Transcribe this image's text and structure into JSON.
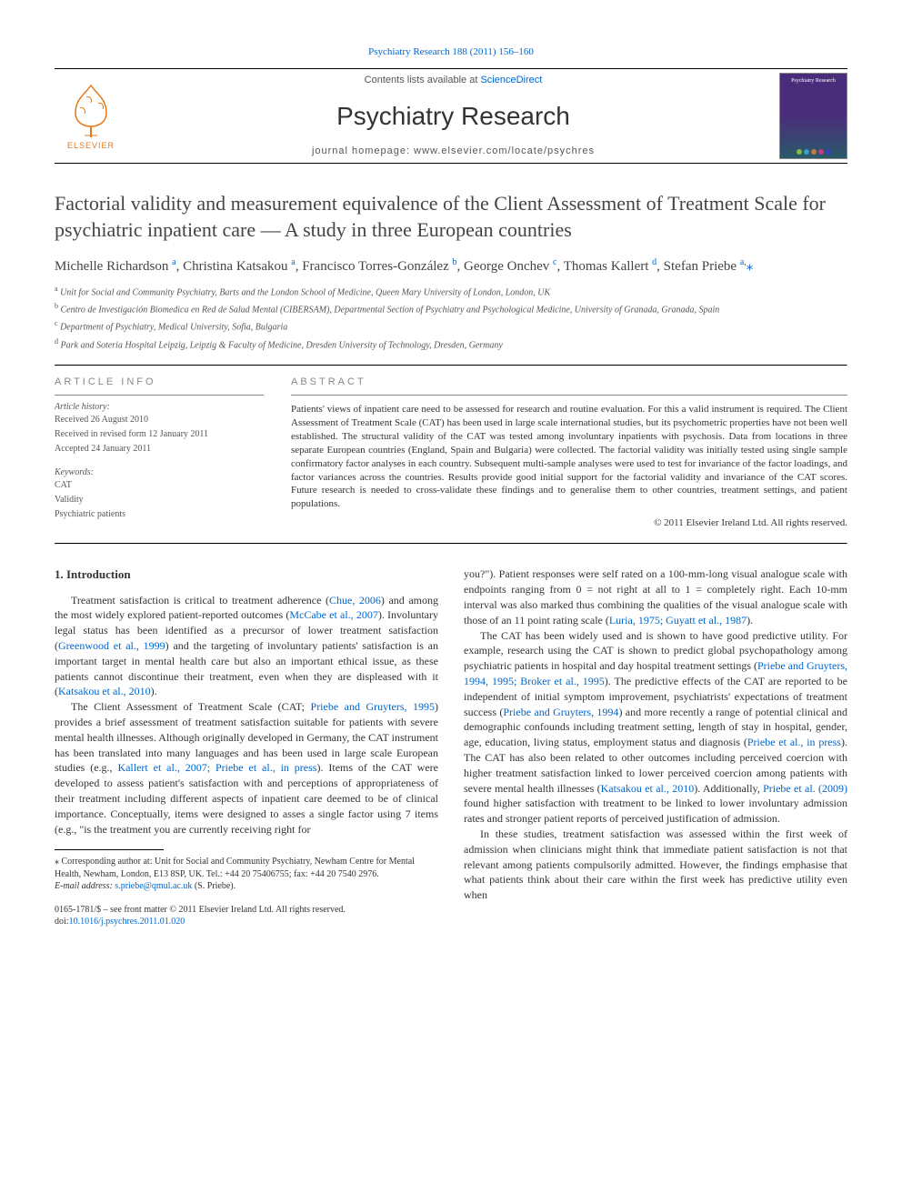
{
  "top_link": {
    "prefix": "",
    "journal_ref": "Psychiatry Research 188 (2011) 156–160",
    "url_text": ""
  },
  "header": {
    "contents_prefix": "Contents lists available at ",
    "contents_link": "ScienceDirect",
    "journal_title": "Psychiatry Research",
    "homepage_prefix": "journal homepage: ",
    "homepage_url": "www.elsevier.com/locate/psychres",
    "publisher_name": "ELSEVIER"
  },
  "cover": {
    "title_text": "Psychiatry Research",
    "dot_colors": [
      "#7fbf3f",
      "#3f9fbf",
      "#bf7f3f",
      "#bf3f7f",
      "#3f3fbf"
    ]
  },
  "article": {
    "title": "Factorial validity and measurement equivalence of the Client Assessment of Treatment Scale for psychiatric inpatient care — A study in three European countries",
    "authors_html": "Michelle Richardson <sup>a</sup>, Christina Katsakou <sup>a</sup>, Francisco Torres-González <sup>b</sup>, George Onchev <sup>c</sup>, Thomas Kallert <sup>d</sup>, Stefan Priebe <sup>a,</sup><span class='star'>⁎</span>",
    "affiliations": [
      "a Unit for Social and Community Psychiatry, Barts and the London School of Medicine, Queen Mary University of London, London, UK",
      "b Centro de Investigación Biomedica en Red de Salud Mental (CIBERSAM), Departmental Section of Psychiatry and Psychological Medicine, University of Granada, Granada, Spain",
      "c Department of Psychiatry, Medical University, Sofia, Bulgaria",
      "d Park and Soteria Hospital Leipzig, Leipzig & Faculty of Medicine, Dresden University of Technology, Dresden, Germany"
    ]
  },
  "article_info": {
    "heading": "article info",
    "history_label": "Article history:",
    "history": [
      "Received 26 August 2010",
      "Received in revised form 12 January 2011",
      "Accepted 24 January 2011"
    ],
    "keywords_label": "Keywords:",
    "keywords": [
      "CAT",
      "Validity",
      "Psychiatric patients"
    ]
  },
  "abstract": {
    "heading": "abstract",
    "text": "Patients' views of inpatient care need to be assessed for research and routine evaluation. For this a valid instrument is required. The Client Assessment of Treatment Scale (CAT) has been used in large scale international studies, but its psychometric properties have not been well established. The structural validity of the CAT was tested among involuntary inpatients with psychosis. Data from locations in three separate European countries (England, Spain and Bulgaria) were collected. The factorial validity was initially tested using single sample confirmatory factor analyses in each country. Subsequent multi-sample analyses were used to test for invariance of the factor loadings, and factor variances across the countries. Results provide good initial support for the factorial validity and invariance of the CAT scores. Future research is needed to cross-validate these findings and to generalise them to other countries, treatment settings, and patient populations.",
    "copyright": "© 2011 Elsevier Ireland Ltd. All rights reserved."
  },
  "body": {
    "section1_heading": "1. Introduction",
    "left_paragraphs": [
      "Treatment satisfaction is critical to treatment adherence (<a class='cite'>Chue, 2006</a>) and among the most widely explored patient-reported outcomes (<a class='cite'>McCabe et al., 2007</a>). Involuntary legal status has been identified as a precursor of lower treatment satisfaction (<a class='cite'>Greenwood et al., 1999</a>) and the targeting of involuntary patients' satisfaction is an important target in mental health care but also an important ethical issue, as these patients cannot discontinue their treatment, even when they are displeased with it (<a class='cite'>Katsakou et al., 2010</a>).",
      "The Client Assessment of Treatment Scale (CAT; <a class='cite'>Priebe and Gruyters, 1995</a>) provides a brief assessment of treatment satisfaction suitable for patients with severe mental health illnesses. Although originally developed in Germany, the CAT instrument has been translated into many languages and has been used in large scale European studies (e.g., <a class='cite'>Kallert et al., 2007; Priebe et al., in press</a>). Items of the CAT were developed to assess patient's satisfaction with and perceptions of appropriateness of their treatment including different aspects of inpatient care deemed to be of clinical importance. Conceptually, items were designed to asses a single factor using 7 items (e.g., \"is the treatment you are currently receiving right for"
    ],
    "right_paragraphs": [
      "you?\"). Patient responses were self rated on a 100-mm-long visual analogue scale with endpoints ranging from 0 = not right at all to 1 = completely right. Each 10-mm interval was also marked thus combining the qualities of the visual analogue scale with those of an 11 point rating scale (<a class='cite'>Luria, 1975; Guyatt et al., 1987</a>).",
      "The CAT has been widely used and is shown to have good predictive utility. For example, research using the CAT is shown to predict global psychopathology among psychiatric patients in hospital and day hospital treatment settings (<a class='cite'>Priebe and Gruyters, 1994, 1995; Broker et al., 1995</a>). The predictive effects of the CAT are reported to be independent of initial symptom improvement, psychiatrists' expectations of treatment success (<a class='cite'>Priebe and Gruyters, 1994</a>) and more recently a range of potential clinical and demographic confounds including treatment setting, length of stay in hospital, gender, age, education, living status, employment status and diagnosis (<a class='cite'>Priebe et al., in press</a>). The CAT has also been related to other outcomes including perceived coercion with higher treatment satisfaction linked to lower perceived coercion among patients with severe mental health illnesses (<a class='cite'>Katsakou et al., 2010</a>). Additionally, <a class='cite'>Priebe et al. (2009)</a> found higher satisfaction with treatment to be linked to lower involuntary admission rates and stronger patient reports of perceived justification of admission.",
      "In these studies, treatment satisfaction was assessed within the first week of admission when clinicians might think that immediate patient satisfaction is not that relevant among patients compulsorily admitted. However, the findings emphasise that what patients think about their care within the first week has predictive utility even when"
    ]
  },
  "footnote": {
    "star": "⁎",
    "text": "Corresponding author at: Unit for Social and Community Psychiatry, Newham Centre for Mental Health, Newham, London, E13 8SP, UK. Tel.: +44 20 75406755; fax: +44 20 7540 2976.",
    "email_label": "E-mail address: ",
    "email": "s.priebe@qmul.ac.uk",
    "email_suffix": " (S. Priebe)."
  },
  "doi": {
    "line1": "0165-1781/$ – see front matter © 2011 Elsevier Ireland Ltd. All rights reserved.",
    "line2_prefix": "doi:",
    "line2_link": "10.1016/j.psychres.2011.01.020"
  },
  "colors": {
    "link": "#0066cc",
    "elsevier_orange": "#e67817",
    "text": "#333333",
    "muted": "#555555"
  }
}
